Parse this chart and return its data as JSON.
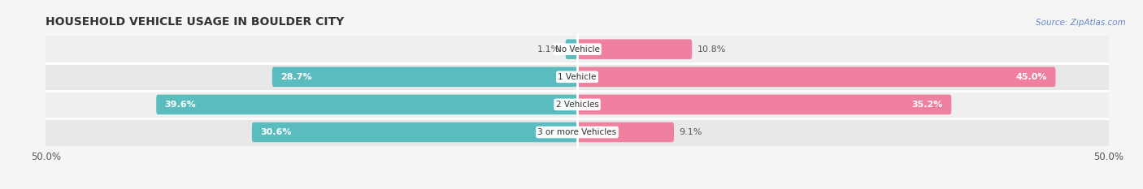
{
  "title": "HOUSEHOLD VEHICLE USAGE IN BOULDER CITY",
  "source": "Source: ZipAtlas.com",
  "categories": [
    "No Vehicle",
    "1 Vehicle",
    "2 Vehicles",
    "3 or more Vehicles"
  ],
  "owner_values": [
    1.1,
    28.7,
    39.6,
    30.6
  ],
  "renter_values": [
    10.8,
    45.0,
    35.2,
    9.1
  ],
  "owner_color": "#5bbcbf",
  "renter_color": "#f080a0",
  "bar_bg_color": "#e8e8e8",
  "row_bg_even": "#f2f2f2",
  "row_bg_odd": "#ebebeb",
  "xlim": 50.0,
  "title_fontsize": 10,
  "bar_height": 0.72,
  "background_color": "#f5f5f5",
  "white_sep": "#ffffff"
}
